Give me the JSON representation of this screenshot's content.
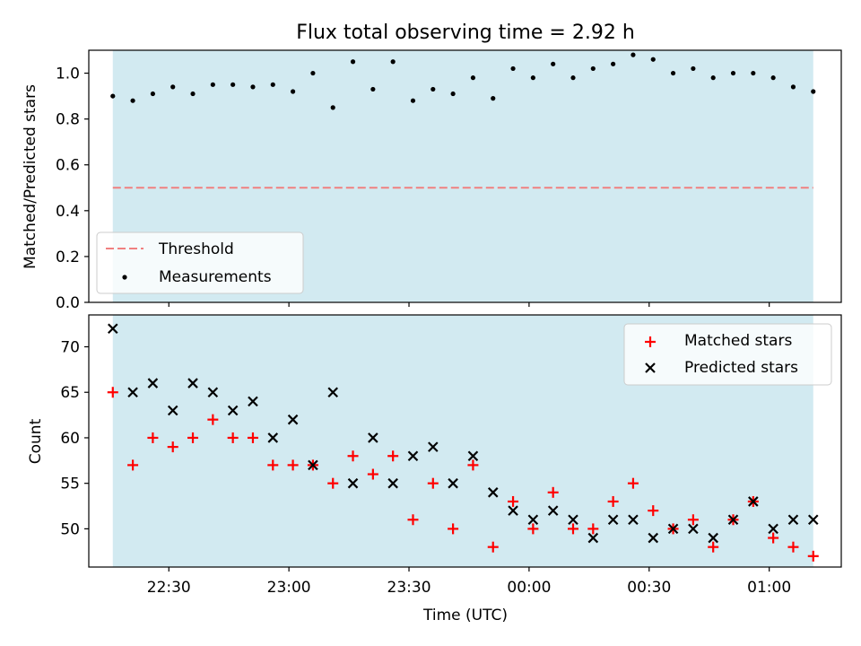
{
  "chart_data": [
    {
      "type": "scatter",
      "title": "Flux total observing time = 2.92 h",
      "xlabel": "",
      "ylabel": "Matched/Predicted stars",
      "ylim": [
        0,
        1.1
      ],
      "yticks": [
        "0.0",
        "0.2",
        "0.4",
        "0.6",
        "0.8",
        "1.0"
      ],
      "shaded_span": {
        "color": "#add8e6",
        "from": "22:16",
        "to": "01:11"
      },
      "threshold": {
        "name": "Threshold",
        "value": 0.5,
        "color": "#f08080",
        "style": "dashed"
      },
      "series": [
        {
          "name": "Measurements",
          "marker": "dot",
          "color": "#000000",
          "x": [
            "22:16",
            "22:21",
            "22:26",
            "22:31",
            "22:36",
            "22:41",
            "22:46",
            "22:51",
            "22:56",
            "23:01",
            "23:06",
            "23:11",
            "23:16",
            "23:21",
            "23:26",
            "23:31",
            "23:36",
            "23:41",
            "23:46",
            "23:51",
            "23:56",
            "00:01",
            "00:06",
            "00:11",
            "00:16",
            "00:21",
            "00:26",
            "00:31",
            "00:36",
            "00:41",
            "00:46",
            "00:51",
            "00:56",
            "01:01",
            "01:06",
            "01:11"
          ],
          "y": [
            0.9,
            0.88,
            0.91,
            0.94,
            0.91,
            0.95,
            0.95,
            0.94,
            0.95,
            0.92,
            1.0,
            0.85,
            1.05,
            0.93,
            1.05,
            0.88,
            0.93,
            0.91,
            0.98,
            0.89,
            1.02,
            0.98,
            1.04,
            0.98,
            1.02,
            1.04,
            1.08,
            1.06,
            1.0,
            1.02,
            0.98,
            1.0,
            1.0,
            0.98,
            0.94,
            0.92
          ]
        }
      ],
      "legend": {
        "placement": "lower-left",
        "entries": [
          "Threshold",
          "Measurements"
        ]
      }
    },
    {
      "type": "scatter",
      "title": "",
      "xlabel": "Time (UTC)",
      "ylabel": "Count",
      "xlim": [
        "22:10",
        "01:18"
      ],
      "ylim": [
        45.8,
        73.5
      ],
      "yticks": [
        "50",
        "55",
        "60",
        "65",
        "70"
      ],
      "xticks": [
        "22:30",
        "23:00",
        "23:30",
        "00:00",
        "00:30",
        "01:00"
      ],
      "shaded_span": {
        "color": "#add8e6",
        "from": "22:16",
        "to": "01:11"
      },
      "series": [
        {
          "name": "Matched stars",
          "marker": "plus",
          "color": "#ff0000",
          "x": [
            "22:16",
            "22:21",
            "22:26",
            "22:31",
            "22:36",
            "22:41",
            "22:46",
            "22:51",
            "22:56",
            "23:01",
            "23:06",
            "23:11",
            "23:16",
            "23:21",
            "23:26",
            "23:31",
            "23:36",
            "23:41",
            "23:46",
            "23:51",
            "23:56",
            "00:01",
            "00:06",
            "00:11",
            "00:16",
            "00:21",
            "00:26",
            "00:31",
            "00:36",
            "00:41",
            "00:46",
            "00:51",
            "00:56",
            "01:01",
            "01:06",
            "01:11"
          ],
          "y": [
            65,
            57,
            60,
            59,
            60,
            62,
            60,
            60,
            57,
            57,
            57,
            55,
            58,
            56,
            58,
            51,
            55,
            50,
            57,
            48,
            53,
            50,
            54,
            50,
            50,
            53,
            55,
            52,
            50,
            51,
            48,
            51,
            53,
            49,
            48,
            47
          ]
        },
        {
          "name": "Predicted stars",
          "marker": "x",
          "color": "#000000",
          "x": [
            "22:16",
            "22:21",
            "22:26",
            "22:31",
            "22:36",
            "22:41",
            "22:46",
            "22:51",
            "22:56",
            "23:01",
            "23:06",
            "23:11",
            "23:16",
            "23:21",
            "23:26",
            "23:31",
            "23:36",
            "23:41",
            "23:46",
            "23:51",
            "23:56",
            "00:01",
            "00:06",
            "00:11",
            "00:16",
            "00:21",
            "00:26",
            "00:31",
            "00:36",
            "00:41",
            "00:46",
            "00:51",
            "00:56",
            "01:01",
            "01:06",
            "01:11"
          ],
          "y": [
            72,
            65,
            66,
            63,
            66,
            65,
            63,
            64,
            60,
            62,
            57,
            65,
            55,
            60,
            55,
            58,
            59,
            55,
            58,
            54,
            52,
            51,
            52,
            51,
            49,
            51,
            51,
            49,
            50,
            50,
            49,
            51,
            53,
            50,
            51,
            51
          ]
        }
      ],
      "legend": {
        "placement": "upper-right",
        "entries": [
          "Matched stars",
          "Predicted stars"
        ]
      }
    }
  ]
}
